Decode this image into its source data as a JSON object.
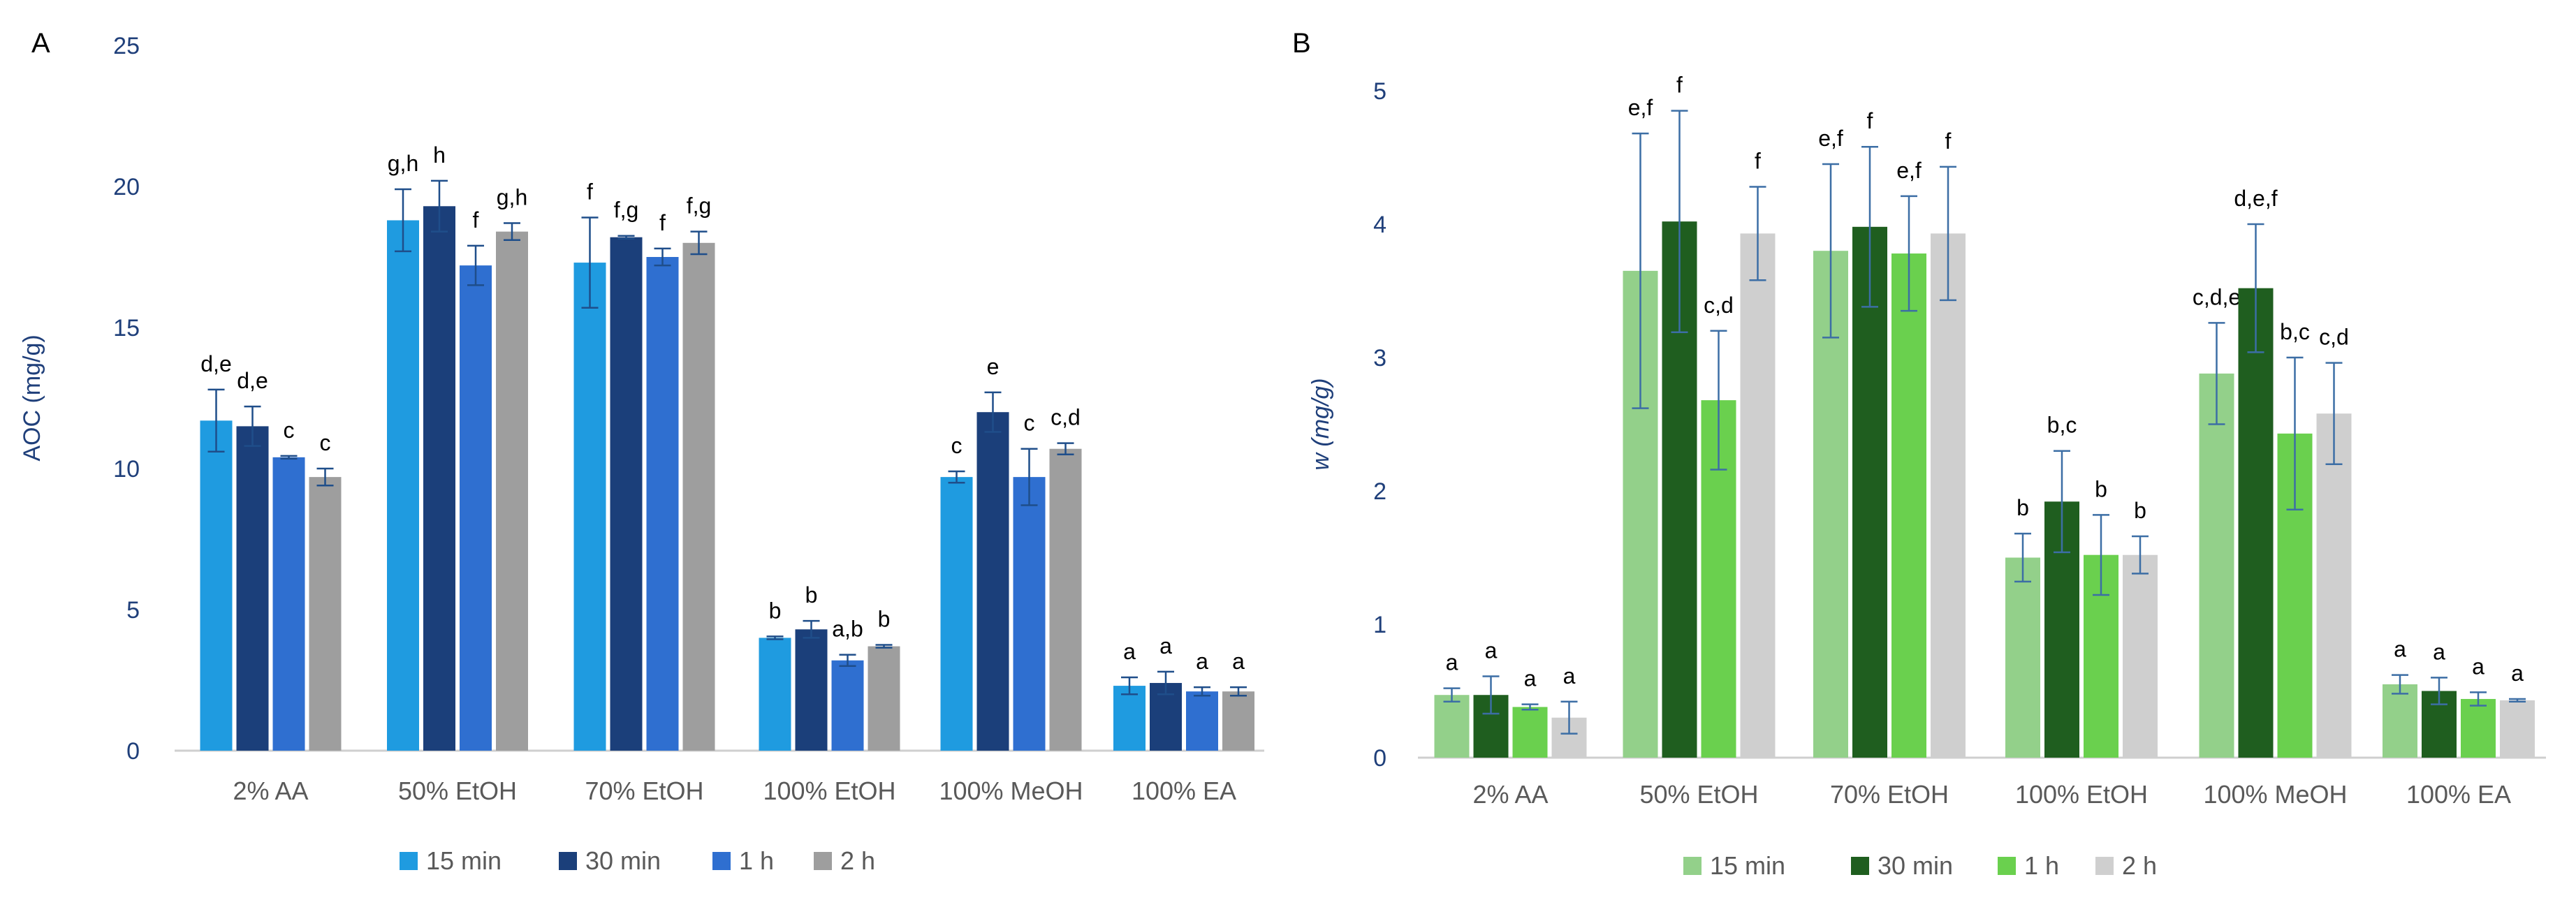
{
  "chart_data": [
    {
      "panel_label": "A",
      "type": "bar",
      "title": "",
      "xlabel": "",
      "ylabel": "AOC (mg/g)",
      "ylim": [
        0,
        25
      ],
      "yticks": [
        "0",
        "5",
        "10",
        "15",
        "20",
        "25"
      ],
      "grid": false,
      "legend": "bottom",
      "categories": [
        "2% AA",
        "50% EtOH",
        "70% EtOH",
        "100% EtOH",
        "100% MeOH",
        "100% EA"
      ],
      "series": [
        {
          "name": "15 min",
          "color": "#1f9be0",
          "values": [
            11.7,
            18.8,
            17.3,
            4.0,
            9.7,
            2.3
          ],
          "errors": [
            1.1,
            1.1,
            1.6,
            0.05,
            0.2,
            0.3
          ],
          "letters": [
            "d,e",
            "g,h",
            "f",
            "b",
            "c",
            "a"
          ]
        },
        {
          "name": "30 min",
          "color": "#1b3f7a",
          "values": [
            11.5,
            19.3,
            18.2,
            4.3,
            12.0,
            2.4
          ],
          "errors": [
            0.7,
            0.9,
            0.05,
            0.3,
            0.7,
            0.4
          ],
          "letters": [
            "d,e",
            "h",
            "f,g",
            "b",
            "e",
            "a"
          ]
        },
        {
          "name": "1 h",
          "color": "#2f6fd0",
          "values": [
            10.4,
            17.2,
            17.5,
            3.2,
            9.7,
            2.1
          ],
          "errors": [
            0.05,
            0.7,
            0.3,
            0.2,
            1.0,
            0.15
          ],
          "letters": [
            "c",
            "f",
            "f",
            "a,b",
            "c",
            "a"
          ]
        },
        {
          "name": "2 h",
          "color": "#9e9e9e",
          "values": [
            9.7,
            18.4,
            18.0,
            3.7,
            10.7,
            2.1
          ],
          "errors": [
            0.3,
            0.3,
            0.4,
            0.05,
            0.2,
            0.15
          ],
          "letters": [
            "c",
            "g,h",
            "f,g",
            "b",
            "c,d",
            "a"
          ]
        }
      ]
    },
    {
      "panel_label": "B",
      "type": "bar",
      "title": "",
      "xlabel": "",
      "ylabel": "w (mg/g)",
      "ylim": [
        0,
        5
      ],
      "yticks": [
        "0",
        "1",
        "2",
        "3",
        "4",
        "5"
      ],
      "grid": false,
      "legend": "bottom",
      "categories": [
        "2% AA",
        "50% EtOH",
        "70% EtOH",
        "100% EtOH",
        "100% MeOH",
        "100% EA"
      ],
      "series": [
        {
          "name": "15 min",
          "color": "#93d08a",
          "values": [
            0.47,
            3.65,
            3.8,
            1.5,
            2.88,
            0.55
          ],
          "errors": [
            0.05,
            1.03,
            0.65,
            0.18,
            0.38,
            0.07
          ],
          "letters": [
            "a",
            "e,f",
            "e,f",
            "b",
            "c,d,e",
            "a"
          ]
        },
        {
          "name": "30 min",
          "color": "#1f5e1f",
          "values": [
            0.47,
            4.02,
            3.98,
            1.92,
            3.52,
            0.5
          ],
          "errors": [
            0.14,
            0.83,
            0.6,
            0.38,
            0.48,
            0.1
          ],
          "letters": [
            "a",
            "f",
            "f",
            "b,c",
            "d,e,f",
            "a"
          ]
        },
        {
          "name": "1 h",
          "color": "#6ad04e",
          "values": [
            0.38,
            2.68,
            3.78,
            1.52,
            2.43,
            0.44
          ],
          "errors": [
            0.02,
            0.52,
            0.43,
            0.3,
            0.57,
            0.05
          ],
          "letters": [
            "a",
            "c,d",
            "e,f",
            "b",
            "b,c",
            "a"
          ]
        },
        {
          "name": "2 h",
          "color": "#cfcfcf",
          "values": [
            0.3,
            3.93,
            3.93,
            1.52,
            2.58,
            0.43
          ],
          "errors": [
            0.12,
            0.35,
            0.5,
            0.14,
            0.38,
            0.01
          ],
          "letters": [
            "a",
            "f",
            "f",
            "b",
            "c,d",
            "a"
          ]
        }
      ]
    }
  ]
}
